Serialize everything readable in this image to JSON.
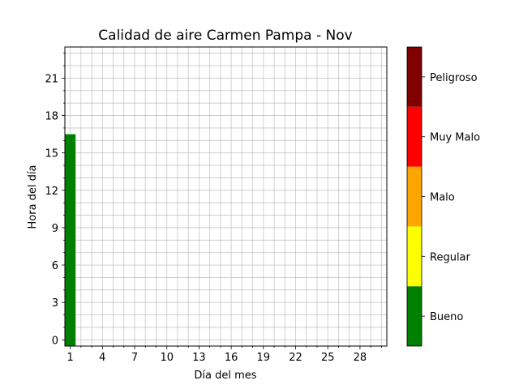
{
  "chart_data": {
    "type": "heatmap",
    "title": "Calidad de aire Carmen Pampa - Nov",
    "xlabel": "Día del mes",
    "ylabel": "Hora del día",
    "x_ticks": [
      1,
      4,
      7,
      10,
      13,
      16,
      19,
      22,
      25,
      28
    ],
    "y_ticks": [
      0,
      3,
      6,
      9,
      12,
      15,
      18,
      21
    ],
    "xlim": [
      0.5,
      30.5
    ],
    "ylim": [
      -0.5,
      23.5
    ],
    "grid": true,
    "cells": [
      {
        "day": 1,
        "hour_from": 0,
        "hour_to": 16,
        "category": "Bueno"
      }
    ],
    "colorbar": {
      "categories": [
        {
          "label": "Bueno",
          "color": "#008000"
        },
        {
          "label": "Regular",
          "color": "#ffff00"
        },
        {
          "label": "Malo",
          "color": "#ffa500"
        },
        {
          "label": "Muy Malo",
          "color": "#ff0000"
        },
        {
          "label": "Peligroso",
          "color": "#800000"
        }
      ]
    }
  }
}
